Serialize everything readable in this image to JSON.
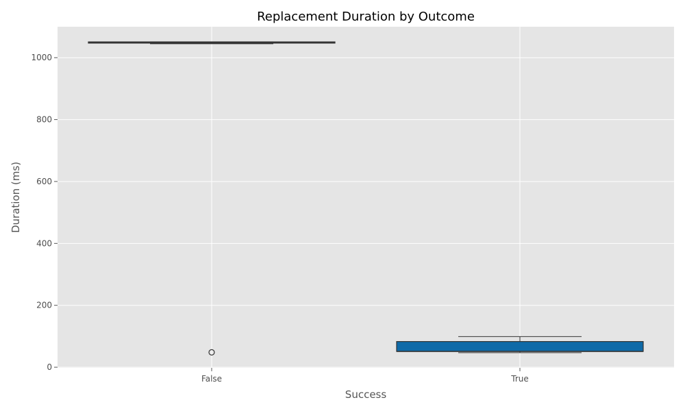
{
  "chart_data": {
    "type": "box",
    "title": "Replacement Duration by Outcome",
    "xlabel": "Success",
    "ylabel": "Duration (ms)",
    "ylim": [
      -2,
      1100
    ],
    "yticks": [
      0,
      200,
      400,
      600,
      800,
      1000
    ],
    "grid": true,
    "categories": [
      "False",
      "True"
    ],
    "boxes": [
      {
        "category": "False",
        "q1": 1047,
        "median": 1050,
        "q3": 1051,
        "whisker_low": 1045,
        "whisker_high": 1051,
        "outliers": [
          48
        ]
      },
      {
        "category": "True",
        "q1": 51,
        "median": 51,
        "q3": 83,
        "whisker_low": 47,
        "whisker_high": 99,
        "outliers": []
      }
    ],
    "colors": {
      "background": "#e5e5e5",
      "grid": "#ffffff",
      "box_false": "#4a4a4a",
      "box_true": "#0e6aa8",
      "edge": "#333333",
      "tick": "#555555"
    }
  }
}
